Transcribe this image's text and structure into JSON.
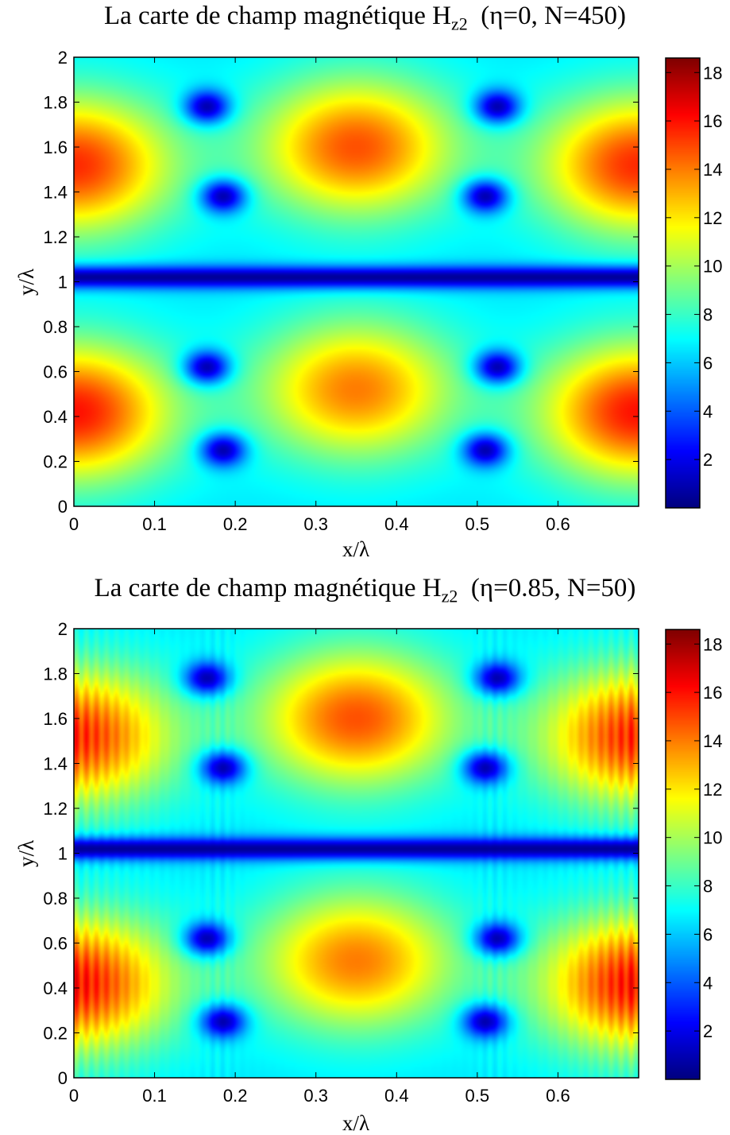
{
  "chart_data": [
    {
      "type": "heatmap",
      "title": "La carte de champ magnétique H",
      "title_sub": "z2",
      "title_params": "(η=0, N=450)",
      "xlabel": "x/λ",
      "ylabel": "y/λ",
      "xlim": [
        0,
        0.7
      ],
      "ylim": [
        0,
        2
      ],
      "xticks": [
        "0",
        "0.1",
        "0.2",
        "0.3",
        "0.4",
        "0.5",
        "0.6"
      ],
      "yticks": [
        "0",
        "0.2",
        "0.4",
        "0.6",
        "0.8",
        "1",
        "1.2",
        "1.4",
        "1.6",
        "1.8",
        "2"
      ],
      "colorbar": {
        "range": [
          0,
          18.6
        ],
        "ticks": [
          "2",
          "4",
          "6",
          "8",
          "10",
          "12",
          "14",
          "16",
          "18"
        ],
        "colormap": "jet"
      },
      "peaks": [
        {
          "x": 0.0,
          "y": 0.42,
          "value": 16.0
        },
        {
          "x": 0.7,
          "y": 0.42,
          "value": 16.0
        },
        {
          "x": 0.0,
          "y": 1.52,
          "value": 15.5
        },
        {
          "x": 0.7,
          "y": 1.52,
          "value": 15.5
        },
        {
          "x": 0.35,
          "y": 0.52,
          "value": 14.0
        },
        {
          "x": 0.35,
          "y": 1.6,
          "value": 14.8
        }
      ],
      "minima": [
        {
          "x": 0.165,
          "y": 1.78
        },
        {
          "x": 0.185,
          "y": 1.38
        },
        {
          "x": 0.165,
          "y": 0.62
        },
        {
          "x": 0.185,
          "y": 0.25
        },
        {
          "x": 0.525,
          "y": 1.78
        },
        {
          "x": 0.51,
          "y": 1.38
        },
        {
          "x": 0.525,
          "y": 0.62
        },
        {
          "x": 0.51,
          "y": 0.25
        }
      ],
      "null_line_y": 1.02,
      "ripples": false
    },
    {
      "type": "heatmap",
      "title": "La carte de champ magnétique H",
      "title_sub": "z2",
      "title_params": "(η=0.85, N=50)",
      "xlabel": "x/λ",
      "ylabel": "y/λ",
      "xlim": [
        0,
        0.7
      ],
      "ylim": [
        0,
        2
      ],
      "xticks": [
        "0",
        "0.1",
        "0.2",
        "0.3",
        "0.4",
        "0.5",
        "0.6"
      ],
      "yticks": [
        "0",
        "0.2",
        "0.4",
        "0.6",
        "0.8",
        "1",
        "1.2",
        "1.4",
        "1.6",
        "1.8",
        "2"
      ],
      "colorbar": {
        "range": [
          0,
          18.6
        ],
        "ticks": [
          "2",
          "4",
          "6",
          "8",
          "10",
          "12",
          "14",
          "16",
          "18"
        ],
        "colormap": "jet"
      },
      "peaks": [
        {
          "x": 0.0,
          "y": 0.42,
          "value": 16.0
        },
        {
          "x": 0.7,
          "y": 0.42,
          "value": 16.0
        },
        {
          "x": 0.0,
          "y": 1.52,
          "value": 15.5
        },
        {
          "x": 0.7,
          "y": 1.52,
          "value": 15.5
        },
        {
          "x": 0.35,
          "y": 0.52,
          "value": 14.0
        },
        {
          "x": 0.35,
          "y": 1.6,
          "value": 14.8
        }
      ],
      "minima": [
        {
          "x": 0.165,
          "y": 1.78
        },
        {
          "x": 0.185,
          "y": 1.38
        },
        {
          "x": 0.165,
          "y": 0.62
        },
        {
          "x": 0.185,
          "y": 0.25
        },
        {
          "x": 0.525,
          "y": 1.78
        },
        {
          "x": 0.51,
          "y": 1.38
        },
        {
          "x": 0.525,
          "y": 0.62
        },
        {
          "x": 0.51,
          "y": 0.25
        }
      ],
      "null_line_y": 1.02,
      "ripples": true
    }
  ]
}
